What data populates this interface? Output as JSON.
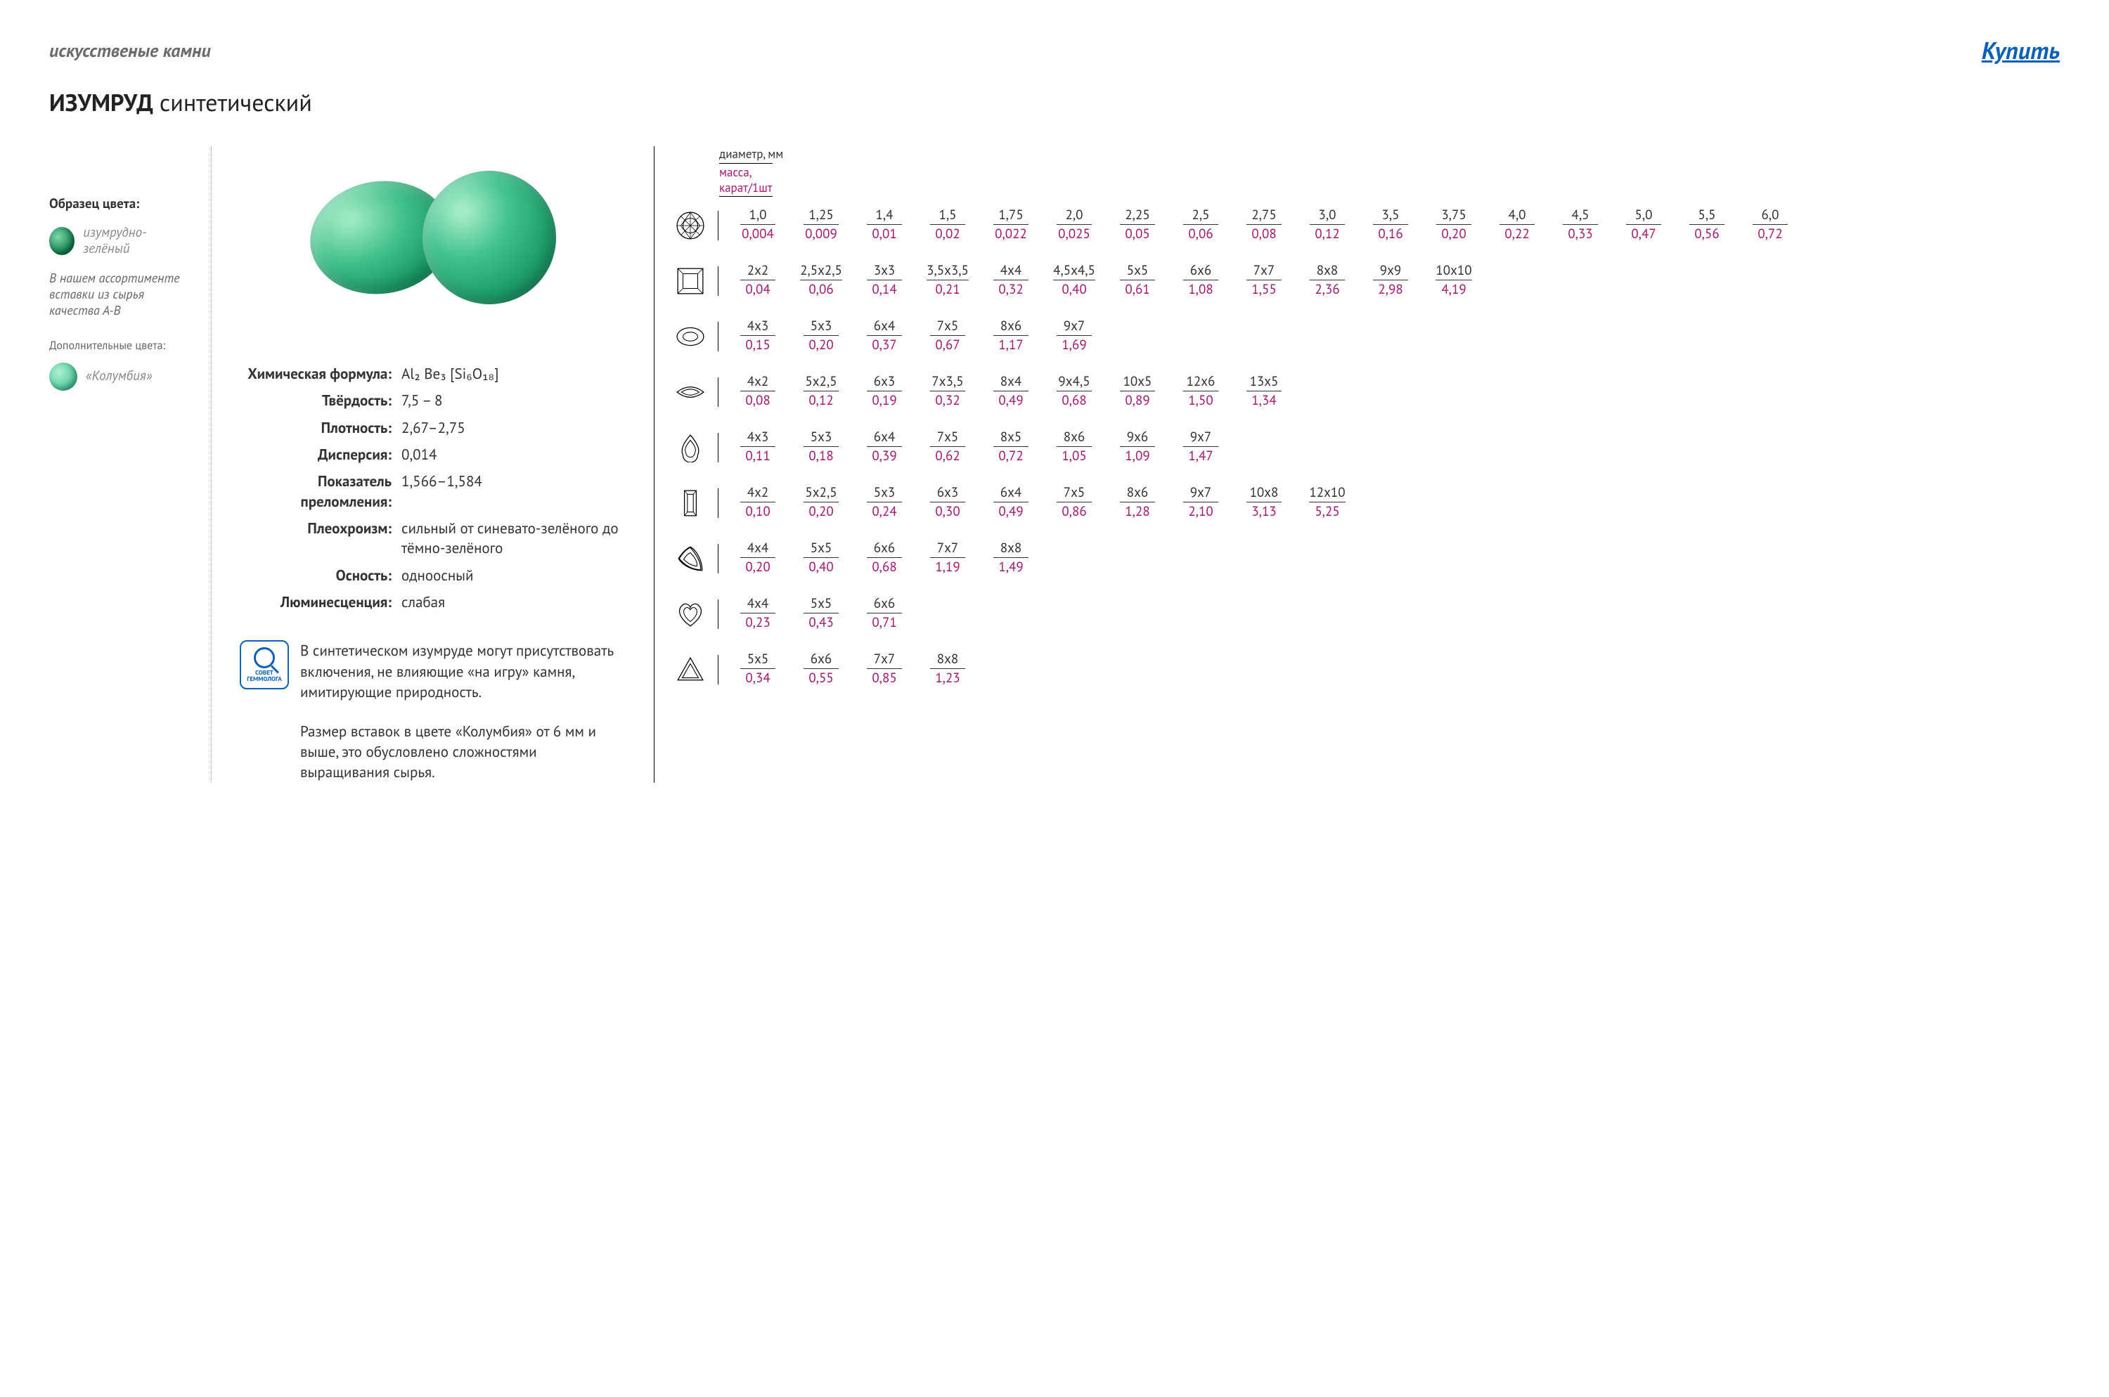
{
  "header": {
    "category": "искусственые камни",
    "buy": "Купить"
  },
  "title": {
    "bold": "ИЗУМРУД",
    "rest": " синтетический"
  },
  "colors": {
    "primary": "#0a7a4a",
    "secondary": "#4cc99a",
    "accent": "#a6186f",
    "link": "#0961b8",
    "text": "#3a3a3a"
  },
  "sidebar": {
    "sample_label": "Образец цвета:",
    "swatch1": "изумрудно-зелёный",
    "assort_note": "В нашем ассортименте вставки из сырья качества А-В",
    "extra_label": "Дополнительные цвета:",
    "swatch2": "«Колумбия»"
  },
  "props": [
    {
      "label": "Химическая формула:",
      "value": "Al₂ Be₃ [Si₆O₁₈]"
    },
    {
      "label": "Твёрдость:",
      "value": "7,5 – 8"
    },
    {
      "label": "Плотность:",
      "value": "2,67–2,75"
    },
    {
      "label": "Дисперсия:",
      "value": "0,014"
    },
    {
      "label": "Показатель преломления:",
      "value": "1,566–1,584"
    },
    {
      "label": "Плеохроизм:",
      "value": "сильный от синевато-зелёного до тёмно-зелёного"
    },
    {
      "label": "Осность:",
      "value": "одноосный"
    },
    {
      "label": "Люминесценция:",
      "value": "слабая"
    }
  ],
  "tip1": "В синтетическом изумруде могут присутствовать включения, не влияющие «на игру» камня, имитирующие природность.",
  "tip2": "Размер вставок в цвете «Колумбия» от 6 мм и выше, это обусловлено сложностями выращивания сырья.",
  "tip_badge_line1": "СОВЕТ",
  "tip_badge_line2": "ГЕММОЛОГА",
  "table_header": {
    "diameter": "диаметр, мм",
    "mass": "масса,\nкарат/1шт"
  },
  "shapes": [
    {
      "icon": "round",
      "items": [
        {
          "s": "1,0",
          "m": "0,004"
        },
        {
          "s": "1,25",
          "m": "0,009"
        },
        {
          "s": "1,4",
          "m": "0,01"
        },
        {
          "s": "1,5",
          "m": "0,02"
        },
        {
          "s": "1,75",
          "m": "0,022"
        },
        {
          "s": "2,0",
          "m": "0,025"
        },
        {
          "s": "2,25",
          "m": "0,05"
        },
        {
          "s": "2,5",
          "m": "0,06"
        },
        {
          "s": "2,75",
          "m": "0,08"
        },
        {
          "s": "3,0",
          "m": "0,12"
        },
        {
          "s": "3,5",
          "m": "0,16"
        },
        {
          "s": "3,75",
          "m": "0,20"
        },
        {
          "s": "4,0",
          "m": "0,22"
        },
        {
          "s": "4,5",
          "m": "0,33"
        },
        {
          "s": "5,0",
          "m": "0,47"
        },
        {
          "s": "5,5",
          "m": "0,56"
        },
        {
          "s": "6,0",
          "m": "0,72"
        }
      ]
    },
    {
      "icon": "square",
      "items": [
        {
          "s": "2x2",
          "m": "0,04"
        },
        {
          "s": "2,5x2,5",
          "m": "0,06"
        },
        {
          "s": "3x3",
          "m": "0,14"
        },
        {
          "s": "3,5x3,5",
          "m": "0,21"
        },
        {
          "s": "4x4",
          "m": "0,32"
        },
        {
          "s": "4,5x4,5",
          "m": "0,40"
        },
        {
          "s": "5x5",
          "m": "0,61"
        },
        {
          "s": "6x6",
          "m": "1,08"
        },
        {
          "s": "7x7",
          "m": "1,55"
        },
        {
          "s": "8x8",
          "m": "2,36"
        },
        {
          "s": "9x9",
          "m": "2,98"
        },
        {
          "s": "10x10",
          "m": "4,19"
        }
      ]
    },
    {
      "icon": "oval",
      "items": [
        {
          "s": "4x3",
          "m": "0,15"
        },
        {
          "s": "5x3",
          "m": "0,20"
        },
        {
          "s": "6x4",
          "m": "0,37"
        },
        {
          "s": "7x5",
          "m": "0,67"
        },
        {
          "s": "8x6",
          "m": "1,17"
        },
        {
          "s": "9x7",
          "m": "1,69"
        }
      ]
    },
    {
      "icon": "marquise",
      "items": [
        {
          "s": "4x2",
          "m": "0,08"
        },
        {
          "s": "5x2,5",
          "m": "0,12"
        },
        {
          "s": "6x3",
          "m": "0,19"
        },
        {
          "s": "7x3,5",
          "m": "0,32"
        },
        {
          "s": "8x4",
          "m": "0,49"
        },
        {
          "s": "9x4,5",
          "m": "0,68"
        },
        {
          "s": "10x5",
          "m": "0,89"
        },
        {
          "s": "12x6",
          "m": "1,50"
        },
        {
          "s": "13x5",
          "m": "1,34"
        }
      ]
    },
    {
      "icon": "pear",
      "items": [
        {
          "s": "4x3",
          "m": "0,11"
        },
        {
          "s": "5x3",
          "m": "0,18"
        },
        {
          "s": "6x4",
          "m": "0,39"
        },
        {
          "s": "7x5",
          "m": "0,62"
        },
        {
          "s": "8x5",
          "m": "0,72"
        },
        {
          "s": "8x6",
          "m": "1,05"
        },
        {
          "s": "9x6",
          "m": "1,09"
        },
        {
          "s": "9x7",
          "m": "1,47"
        }
      ]
    },
    {
      "icon": "baguette",
      "items": [
        {
          "s": "4x2",
          "m": "0,10"
        },
        {
          "s": "5x2,5",
          "m": "0,20"
        },
        {
          "s": "5x3",
          "m": "0,24"
        },
        {
          "s": "6x3",
          "m": "0,30"
        },
        {
          "s": "6x4",
          "m": "0,49"
        },
        {
          "s": "7x5",
          "m": "0,86"
        },
        {
          "s": "8x6",
          "m": "1,28"
        },
        {
          "s": "9x7",
          "m": "2,10"
        },
        {
          "s": "10x8",
          "m": "3,13"
        },
        {
          "s": "12x10",
          "m": "5,25"
        }
      ]
    },
    {
      "icon": "trillion",
      "items": [
        {
          "s": "4x4",
          "m": "0,20"
        },
        {
          "s": "5x5",
          "m": "0,40"
        },
        {
          "s": "6x6",
          "m": "0,68"
        },
        {
          "s": "7x7",
          "m": "1,19"
        },
        {
          "s": "8x8",
          "m": "1,49"
        }
      ]
    },
    {
      "icon": "heart",
      "items": [
        {
          "s": "4x4",
          "m": "0,23"
        },
        {
          "s": "5x5",
          "m": "0,43"
        },
        {
          "s": "6x6",
          "m": "0,71"
        }
      ]
    },
    {
      "icon": "triangle",
      "items": [
        {
          "s": "5x5",
          "m": "0,34"
        },
        {
          "s": "6x6",
          "m": "0,55"
        },
        {
          "s": "7x7",
          "m": "0,85"
        },
        {
          "s": "8x8",
          "m": "1,23"
        }
      ]
    }
  ]
}
